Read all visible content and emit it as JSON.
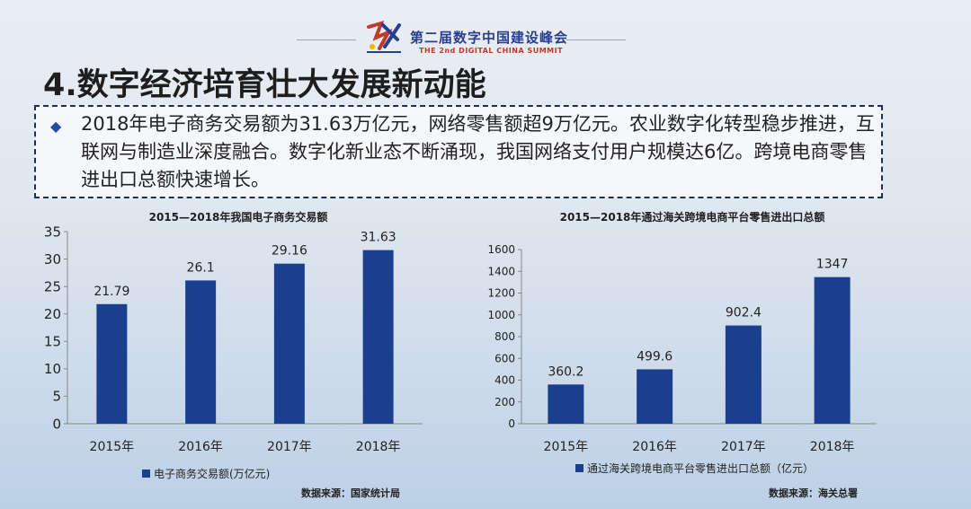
{
  "header": {
    "event_title": "第二届数字中国建设峰会",
    "event_subtitle": "THE 2nd DIGITAL CHINA SUMMIT"
  },
  "section_title": "4.数字经济培育壮大发展新动能",
  "summary": "2018年电子商务交易额为31.63万亿元，网络零售额超9万亿元。农业数字化转型稳步推进，互联网与制造业深度融合。数字化新业态不断涌现，我国网络支付用户规模达6亿。跨境电商零售进出口总额快速增长。",
  "colors": {
    "bar": "#1b3f8f",
    "title": "#1e1e1e",
    "accent": "#2a3d8f"
  },
  "chart_data": [
    {
      "type": "bar",
      "title": "2015—2018年我国电子商务交易额",
      "categories": [
        "2015年",
        "2016年",
        "2017年",
        "2018年"
      ],
      "values": [
        21.79,
        26.1,
        29.16,
        31.63
      ],
      "value_labels": [
        "21.79",
        "26.1",
        "29.16",
        "31.63"
      ],
      "series": [
        {
          "name": "电子商务交易额(万亿元)",
          "values": [
            21.79,
            26.1,
            29.16,
            31.63
          ]
        }
      ],
      "ylim": [
        0,
        35
      ],
      "yticks": [
        0,
        5,
        10,
        15,
        20,
        25,
        30,
        35
      ],
      "legend_position": "bottom-left",
      "source": "数据来源：国家统计局",
      "grid": false
    },
    {
      "type": "bar",
      "title": "2015—2018年通过海关跨境电商平台零售进出口总额",
      "categories": [
        "2015年",
        "2016年",
        "2017年",
        "2018年"
      ],
      "values": [
        360.2,
        499.6,
        902.4,
        1347
      ],
      "value_labels": [
        "360.2",
        "499.6",
        "902.4",
        "1347"
      ],
      "series": [
        {
          "name": "通过海关跨境电商平台零售进出口总额（亿元）",
          "values": [
            360.2,
            499.6,
            902.4,
            1347
          ]
        }
      ],
      "ylim": [
        0,
        1600
      ],
      "yticks": [
        0,
        200,
        400,
        600,
        800,
        1000,
        1200,
        1400,
        1600
      ],
      "legend_position": "bottom-left",
      "source": "数据来源：海关总署",
      "grid": false
    }
  ]
}
